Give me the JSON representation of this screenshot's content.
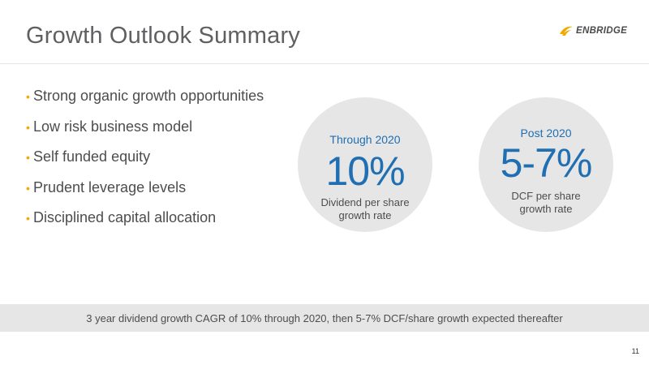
{
  "slide": {
    "title": "Growth Outlook Summary",
    "page_number": "11"
  },
  "logo": {
    "text": "ENBRIDGE",
    "icon": "enbridge-flame-icon",
    "accent_color": "#f2a900"
  },
  "bullets": [
    "Strong organic growth opportunities",
    "Low risk business model",
    "Self funded equity",
    "Prudent leverage levels",
    "Disciplined capital allocation"
  ],
  "circles": [
    {
      "heading": "Through 2020",
      "value": "10%",
      "caption_line1": "Dividend per share",
      "caption_line2": "growth rate"
    },
    {
      "heading": "Post 2020",
      "value": "5-7%",
      "caption_line1": "DCF per share",
      "caption_line2": "growth rate"
    }
  ],
  "footer_band": {
    "text": "3 year dividend growth CAGR of 10% through 2020, then 5-7% DCF/share growth expected thereafter"
  },
  "colors": {
    "accent_blue": "#1f6fb2",
    "bullet_gold": "#f2a900",
    "circle_gray": "#e6e6e6",
    "text_gray": "#4d4d4f"
  }
}
